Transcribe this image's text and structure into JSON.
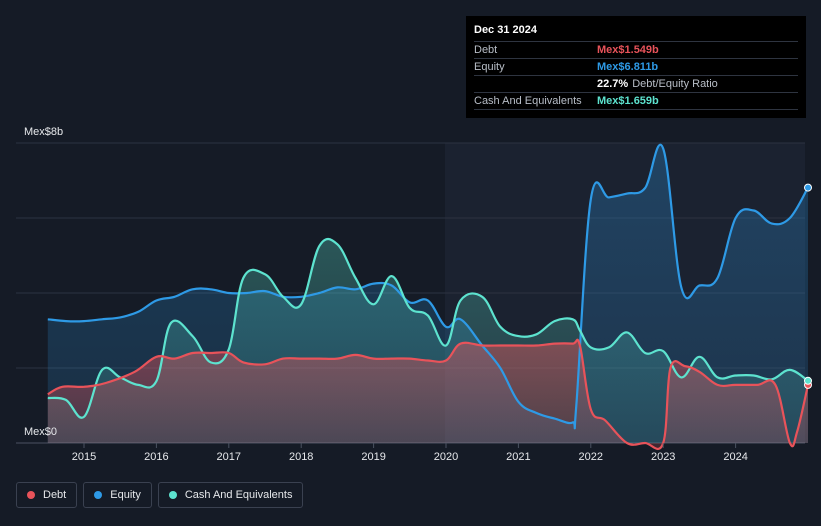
{
  "tooltip": {
    "date": "Dec 31 2024",
    "rows": [
      {
        "label": "Debt",
        "value": "Mex$1.549b",
        "color": "#e8535a"
      },
      {
        "label": "Equity",
        "value": "Mex$6.811b",
        "color": "#2e9ae6"
      },
      {
        "label": "",
        "ratio": "22.7%",
        "ratio_text": "Debt/Equity Ratio"
      },
      {
        "label": "Cash And Equivalents",
        "value": "Mex$1.659b",
        "color": "#5de3cf"
      }
    ]
  },
  "legend": [
    {
      "label": "Debt",
      "color": "#e8535a"
    },
    {
      "label": "Equity",
      "color": "#2e9ae6"
    },
    {
      "label": "Cash And Equivalents",
      "color": "#5de3cf"
    }
  ],
  "chart_data": {
    "type": "area",
    "ylabel_top": "Mex$8b",
    "ylabel_bottom": "Mex$0",
    "ylim": [
      0,
      8
    ],
    "xlim": [
      2014.5,
      2025.0
    ],
    "x_ticks": [
      2015,
      2016,
      2017,
      2018,
      2019,
      2020,
      2021,
      2022,
      2023,
      2024
    ],
    "grid": true,
    "series": [
      {
        "name": "Debt",
        "color": "#e8535a",
        "points": [
          [
            2014.5,
            1.3
          ],
          [
            2014.7,
            1.5
          ],
          [
            2015.0,
            1.5
          ],
          [
            2015.3,
            1.6
          ],
          [
            2015.7,
            1.9
          ],
          [
            2016.0,
            2.3
          ],
          [
            2016.25,
            2.25
          ],
          [
            2016.5,
            2.4
          ],
          [
            2016.75,
            2.4
          ],
          [
            2017.0,
            2.4
          ],
          [
            2017.2,
            2.15
          ],
          [
            2017.5,
            2.1
          ],
          [
            2017.75,
            2.25
          ],
          [
            2018.0,
            2.25
          ],
          [
            2018.25,
            2.25
          ],
          [
            2018.5,
            2.25
          ],
          [
            2018.75,
            2.35
          ],
          [
            2019.0,
            2.25
          ],
          [
            2019.25,
            2.25
          ],
          [
            2019.5,
            2.25
          ],
          [
            2019.75,
            2.2
          ],
          [
            2020.0,
            2.2
          ],
          [
            2020.2,
            2.65
          ],
          [
            2020.5,
            2.6
          ],
          [
            2020.75,
            2.6
          ],
          [
            2021.0,
            2.6
          ],
          [
            2021.25,
            2.6
          ],
          [
            2021.5,
            2.65
          ],
          [
            2021.75,
            2.65
          ],
          [
            2021.85,
            2.6
          ],
          [
            2022.0,
            0.9
          ],
          [
            2022.2,
            0.6
          ],
          [
            2022.5,
            0.0
          ],
          [
            2022.75,
            0.0
          ],
          [
            2023.0,
            0.0
          ],
          [
            2023.1,
            2.0
          ],
          [
            2023.3,
            2.05
          ],
          [
            2023.5,
            1.9
          ],
          [
            2023.75,
            1.55
          ],
          [
            2024.0,
            1.55
          ],
          [
            2024.3,
            1.55
          ],
          [
            2024.55,
            1.55
          ],
          [
            2024.75,
            0.0
          ],
          [
            2024.85,
            0.3
          ],
          [
            2025.0,
            1.549
          ]
        ]
      },
      {
        "name": "Equity",
        "color": "#2e9ae6",
        "points": [
          [
            2014.5,
            3.3
          ],
          [
            2014.75,
            3.25
          ],
          [
            2015.0,
            3.25
          ],
          [
            2015.25,
            3.3
          ],
          [
            2015.5,
            3.35
          ],
          [
            2015.75,
            3.5
          ],
          [
            2016.0,
            3.8
          ],
          [
            2016.25,
            3.9
          ],
          [
            2016.5,
            4.1
          ],
          [
            2016.75,
            4.1
          ],
          [
            2017.0,
            4.0
          ],
          [
            2017.25,
            4.0
          ],
          [
            2017.5,
            4.05
          ],
          [
            2017.75,
            3.9
          ],
          [
            2018.0,
            3.9
          ],
          [
            2018.25,
            4.0
          ],
          [
            2018.5,
            4.15
          ],
          [
            2018.75,
            4.1
          ],
          [
            2019.0,
            4.25
          ],
          [
            2019.25,
            4.2
          ],
          [
            2019.5,
            3.75
          ],
          [
            2019.75,
            3.8
          ],
          [
            2020.0,
            3.1
          ],
          [
            2020.2,
            3.3
          ],
          [
            2020.5,
            2.6
          ],
          [
            2020.75,
            2.0
          ],
          [
            2021.0,
            1.1
          ],
          [
            2021.25,
            0.8
          ],
          [
            2021.5,
            0.65
          ],
          [
            2021.75,
            0.55
          ],
          [
            2021.8,
            1.0
          ],
          [
            2022.0,
            6.5
          ],
          [
            2022.25,
            6.55
          ],
          [
            2022.5,
            6.65
          ],
          [
            2022.75,
            6.8
          ],
          [
            2023.0,
            7.85
          ],
          [
            2023.25,
            4.15
          ],
          [
            2023.5,
            4.2
          ],
          [
            2023.75,
            4.4
          ],
          [
            2024.0,
            6.0
          ],
          [
            2024.25,
            6.2
          ],
          [
            2024.5,
            5.85
          ],
          [
            2024.75,
            6.0
          ],
          [
            2025.0,
            6.811
          ]
        ]
      },
      {
        "name": "Cash And Equivalents",
        "color": "#5de3cf",
        "points": [
          [
            2014.5,
            1.2
          ],
          [
            2014.75,
            1.15
          ],
          [
            2015.0,
            0.7
          ],
          [
            2015.25,
            1.95
          ],
          [
            2015.5,
            1.75
          ],
          [
            2015.75,
            1.55
          ],
          [
            2016.0,
            1.65
          ],
          [
            2016.2,
            3.2
          ],
          [
            2016.5,
            2.85
          ],
          [
            2016.75,
            2.15
          ],
          [
            2017.0,
            2.5
          ],
          [
            2017.2,
            4.4
          ],
          [
            2017.5,
            4.5
          ],
          [
            2017.75,
            3.9
          ],
          [
            2018.0,
            3.7
          ],
          [
            2018.25,
            5.25
          ],
          [
            2018.5,
            5.3
          ],
          [
            2018.75,
            4.4
          ],
          [
            2019.0,
            3.7
          ],
          [
            2019.25,
            4.45
          ],
          [
            2019.5,
            3.6
          ],
          [
            2019.75,
            3.4
          ],
          [
            2020.0,
            2.6
          ],
          [
            2020.2,
            3.8
          ],
          [
            2020.5,
            3.9
          ],
          [
            2020.75,
            3.1
          ],
          [
            2021.0,
            2.85
          ],
          [
            2021.25,
            2.9
          ],
          [
            2021.5,
            3.25
          ],
          [
            2021.75,
            3.3
          ],
          [
            2021.85,
            3.0
          ],
          [
            2022.0,
            2.55
          ],
          [
            2022.25,
            2.55
          ],
          [
            2022.5,
            2.95
          ],
          [
            2022.75,
            2.4
          ],
          [
            2023.0,
            2.45
          ],
          [
            2023.25,
            1.75
          ],
          [
            2023.5,
            2.3
          ],
          [
            2023.75,
            1.75
          ],
          [
            2024.0,
            1.8
          ],
          [
            2024.25,
            1.8
          ],
          [
            2024.5,
            1.7
          ],
          [
            2024.75,
            1.95
          ],
          [
            2025.0,
            1.659
          ]
        ]
      }
    ]
  }
}
